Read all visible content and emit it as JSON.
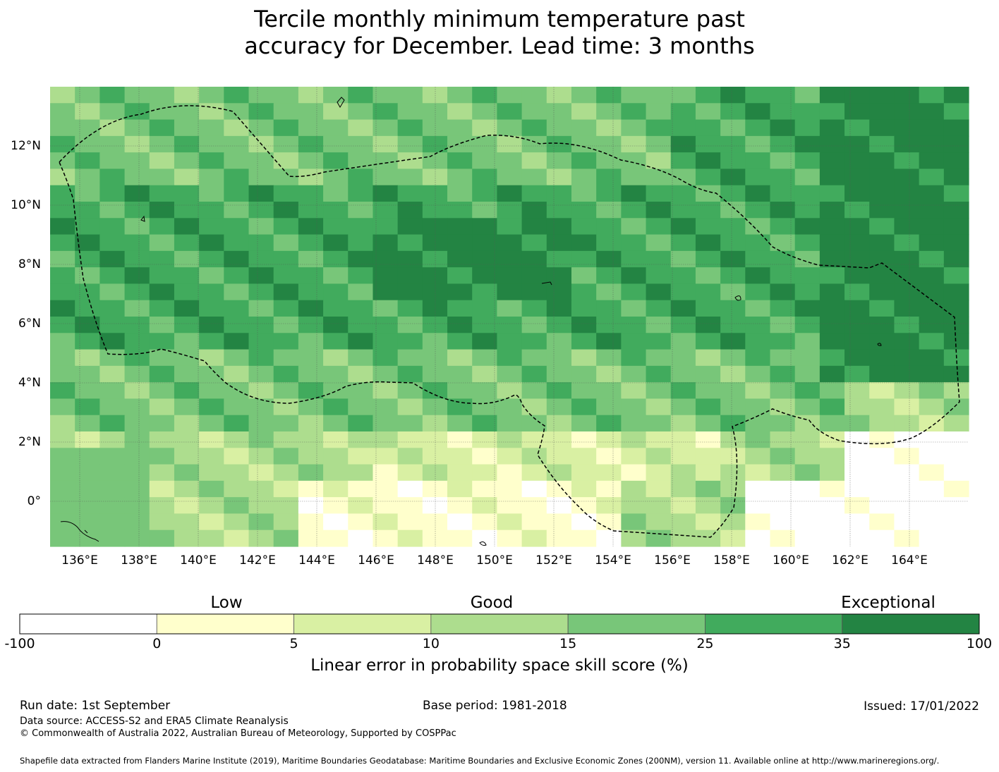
{
  "title": {
    "line1": "Tercile monthly minimum temperature past",
    "line2": "accuracy for December. Lead time: 3 months"
  },
  "map": {
    "x_ticks": [
      "136°E",
      "138°E",
      "140°E",
      "142°E",
      "144°E",
      "146°E",
      "148°E",
      "150°E",
      "152°E",
      "154°E",
      "156°E",
      "158°E",
      "160°E",
      "162°E",
      "164°E"
    ],
    "y_ticks": [
      "12°N",
      "10°N",
      "8°N",
      "6°N",
      "4°N",
      "2°N",
      "0°"
    ],
    "gridlines": true
  },
  "colorbar": {
    "categories": [
      "Low",
      "Good",
      "Exceptional"
    ],
    "boundaries": [
      "-100",
      "0",
      "5",
      "10",
      "15",
      "25",
      "35",
      "100"
    ],
    "colors": [
      "#ffffff",
      "#ffffcc",
      "#d9f0a3",
      "#addd8e",
      "#78c679",
      "#41ab5d",
      "#238443"
    ],
    "label": "Linear error in probability space skill score (%)"
  },
  "footer": {
    "run_date": "Run date: 1st September",
    "base_period": "Base period: 1981-2018",
    "issued": "Issued: 17/01/2022",
    "data_source": "Data source: ACCESS-S2 and ERA5 Climate Reanalysis",
    "copyright": "© Commonwealth of Australia 2022, Australian Bureau of Meteorology, Supported by COSPPac",
    "shapefile": "Shapefile data extracted from Flanders Marine Institute (2019), Maritime Boundaries Geodatabase: Maritime Boundaries and Exclusive Economic Zones (200NM), version 11. Available online at http://www.marineregions.org/."
  }
}
